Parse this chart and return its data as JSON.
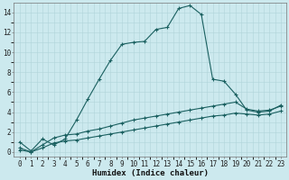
{
  "xlabel": "Humidex (Indice chaleur)",
  "xlim": [
    -0.5,
    23.5
  ],
  "ylim": [
    -0.5,
    15.0
  ],
  "background_color": "#cce9ee",
  "grid_color": "#b0d4da",
  "line_color": "#1a6060",
  "line1_x": [
    0,
    1,
    2,
    3,
    4,
    5,
    6,
    7,
    8,
    9,
    10,
    11,
    12,
    13,
    14,
    15,
    16,
    17,
    18,
    19,
    20,
    21,
    22,
    23
  ],
  "line1_y": [
    1.0,
    0.1,
    1.3,
    0.7,
    1.3,
    3.2,
    5.3,
    7.3,
    9.2,
    10.8,
    11.0,
    11.1,
    12.3,
    12.5,
    14.4,
    14.7,
    13.8,
    7.3,
    7.1,
    5.8,
    4.2,
    4.0,
    4.1,
    4.7
  ],
  "line2_x": [
    0,
    1,
    2,
    3,
    4,
    5,
    6,
    7,
    8,
    9,
    10,
    11,
    12,
    13,
    14,
    15,
    16,
    17,
    18,
    19,
    20,
    21,
    22,
    23
  ],
  "line2_y": [
    0.4,
    0.0,
    0.7,
    1.4,
    1.7,
    1.8,
    2.1,
    2.3,
    2.6,
    2.9,
    3.2,
    3.4,
    3.6,
    3.8,
    4.0,
    4.2,
    4.4,
    4.6,
    4.8,
    5.0,
    4.3,
    4.1,
    4.2,
    4.6
  ],
  "line3_x": [
    0,
    1,
    2,
    3,
    4,
    5,
    6,
    7,
    8,
    9,
    10,
    11,
    12,
    13,
    14,
    15,
    16,
    17,
    18,
    19,
    20,
    21,
    22,
    23
  ],
  "line3_y": [
    0.2,
    0.0,
    0.4,
    0.9,
    1.1,
    1.2,
    1.4,
    1.6,
    1.8,
    2.0,
    2.2,
    2.4,
    2.6,
    2.8,
    3.0,
    3.2,
    3.4,
    3.6,
    3.7,
    3.9,
    3.8,
    3.7,
    3.8,
    4.1
  ],
  "xtick_labels": [
    "0",
    "1",
    "2",
    "3",
    "4",
    "5",
    "6",
    "7",
    "8",
    "9",
    "10",
    "11",
    "12",
    "13",
    "14",
    "15",
    "16",
    "17",
    "18",
    "19",
    "20",
    "21",
    "22",
    "23"
  ],
  "ytick_values": [
    0,
    2,
    4,
    6,
    8,
    10,
    12,
    14
  ],
  "tick_fontsize": 5.5,
  "axis_fontsize": 6.5
}
